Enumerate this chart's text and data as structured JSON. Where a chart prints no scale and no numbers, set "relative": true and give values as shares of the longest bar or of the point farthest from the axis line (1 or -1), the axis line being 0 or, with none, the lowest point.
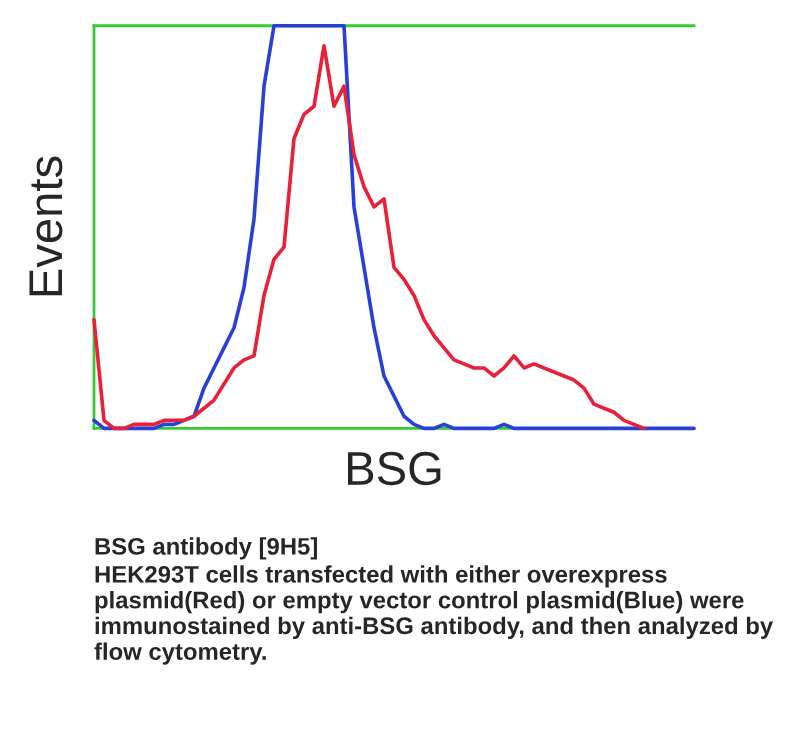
{
  "chart_data": {
    "type": "line",
    "relative": true,
    "xlabel": "BSG",
    "ylabel": "Events",
    "tick_labels": false,
    "legend": false,
    "categories": [
      null,
      null,
      null,
      null,
      null,
      null,
      null,
      null,
      null,
      null,
      null,
      null,
      null,
      null,
      null,
      null,
      null,
      null,
      null,
      null,
      null,
      null,
      null,
      null,
      null,
      null,
      null,
      null,
      null,
      null,
      null,
      null,
      null,
      null,
      null,
      null,
      null,
      null,
      null,
      null,
      null,
      null,
      null,
      null,
      null,
      null,
      null,
      null,
      null,
      null,
      null,
      null,
      null,
      null,
      null,
      null,
      null,
      null,
      null,
      null,
      null
    ],
    "series": [
      {
        "color": "#e8203a",
        "values": [
          0.27,
          0.02,
          0.0,
          0.0,
          0.01,
          0.01,
          0.01,
          0.02,
          0.02,
          0.02,
          0.03,
          0.05,
          0.07,
          0.11,
          0.15,
          0.17,
          0.18,
          0.33,
          0.42,
          0.45,
          0.72,
          0.78,
          0.8,
          0.95,
          0.8,
          0.85,
          0.68,
          0.6,
          0.55,
          0.57,
          0.4,
          0.37,
          0.33,
          0.27,
          0.23,
          0.2,
          0.17,
          0.16,
          0.15,
          0.15,
          0.13,
          0.15,
          0.18,
          0.15,
          0.16,
          0.15,
          0.14,
          0.13,
          0.12,
          0.1,
          0.06,
          0.05,
          0.04,
          0.02,
          0.01,
          0.0,
          null,
          null,
          null,
          null,
          null
        ]
      },
      {
        "color": "#2a3fd8",
        "values": [
          0.02,
          0.0,
          0.0,
          0.0,
          0.0,
          0.0,
          0.0,
          0.01,
          0.01,
          0.02,
          0.03,
          0.1,
          0.15,
          0.2,
          0.25,
          0.35,
          0.52,
          0.85,
          1,
          1,
          1,
          1,
          1,
          1,
          1,
          1,
          0.55,
          0.4,
          0.25,
          0.13,
          0.08,
          0.03,
          0.01,
          0.0,
          0.0,
          0.01,
          0.0,
          0.0,
          0.0,
          0.0,
          0.0,
          0.01,
          0.0,
          0.0,
          0.0,
          0.0,
          0.0,
          0.0,
          0.0,
          0.0,
          0.0,
          0.0,
          0.0,
          0.0,
          0.0,
          0.0,
          0.0,
          0.0,
          0.0,
          0.0,
          0.0
        ]
      }
    ],
    "annotations": [
      "BSG antibody [9H5]",
      "HEK293T cells transfected with either overexpress plasmid(Red) or empty vector control plasmid(Blue) were immunostained by anti-BSG antibody, and then analyzed by flow cytometry."
    ]
  }
}
